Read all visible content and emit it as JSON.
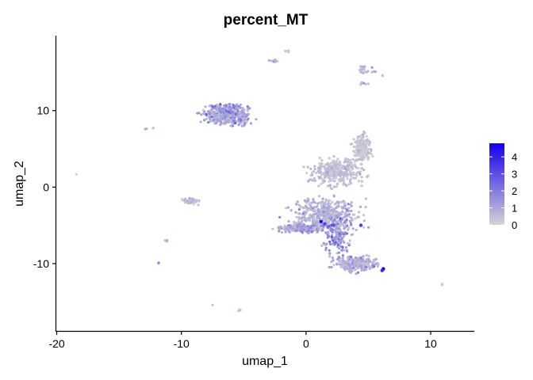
{
  "chart_data": {
    "type": "scatter",
    "title": "percent_MT",
    "xlabel": "umap_1",
    "ylabel": "umap_2",
    "xlim": [
      -20.1,
      13.5
    ],
    "ylim": [
      -18.8,
      19.8
    ],
    "x_ticks": [
      -20,
      -10,
      0,
      10
    ],
    "x_tick_labels": [
      "-20",
      "-10",
      "0",
      "10"
    ],
    "y_ticks": [
      10,
      0,
      -10
    ],
    "y_tick_labels": [
      "10",
      "0",
      "-10"
    ],
    "grid": false,
    "legend": {
      "placement": "right",
      "type": "colorbar",
      "ticks": [
        0,
        1,
        2,
        3,
        4
      ],
      "tick_labels": [
        "0",
        "1",
        "2",
        "3",
        "4"
      ],
      "range": [
        0,
        4.8
      ],
      "low_color": "#d3d3d3",
      "high_color": "#1400f0"
    },
    "clusters": [
      {
        "x": [
          -9.0,
          -3.8
        ],
        "y": [
          7.5,
          11.2
        ],
        "n": 380,
        "level": 0.9
      },
      {
        "x": [
          -8.5,
          -4.5
        ],
        "y": [
          9.5,
          11.0
        ],
        "n": 60,
        "level": 1.5
      },
      {
        "x": [
          -0.5,
          5.5
        ],
        "y": [
          -0.5,
          4.5
        ],
        "n": 320,
        "level": 0.4
      },
      {
        "x": [
          3.5,
          5.5
        ],
        "y": [
          2.5,
          7.5
        ],
        "n": 220,
        "level": 0.3
      },
      {
        "x": [
          -2.5,
          5.5
        ],
        "y": [
          -6.5,
          -0.5
        ],
        "n": 420,
        "level": 0.7
      },
      {
        "x": [
          -3.0,
          2.0
        ],
        "y": [
          -6.2,
          -4.5
        ],
        "n": 200,
        "level": 1.0
      },
      {
        "x": [
          1.0,
          4.0
        ],
        "y": [
          -9.5,
          -3.0
        ],
        "n": 160,
        "level": 1.2
      },
      {
        "x": [
          1.5,
          6.5
        ],
        "y": [
          -11.5,
          -8.5
        ],
        "n": 260,
        "level": 0.8
      },
      {
        "x": [
          -10.2,
          -8.2
        ],
        "y": [
          -2.5,
          -1.2
        ],
        "n": 40,
        "level": 0.5
      },
      {
        "x": [
          3.8,
          5.8
        ],
        "y": [
          14.5,
          16.0
        ],
        "n": 26,
        "level": 0.6
      },
      {
        "x": [
          3.8,
          5.2
        ],
        "y": [
          13.3,
          14.0
        ],
        "n": 8,
        "level": 0.8
      },
      {
        "x": [
          -3.2,
          -2.0
        ],
        "y": [
          16.2,
          16.8
        ],
        "n": 10,
        "level": 0.6
      },
      {
        "x": [
          -1.7,
          -1.3
        ],
        "y": [
          17.6,
          17.9
        ],
        "n": 4,
        "level": 0.4
      },
      {
        "x": [
          6.0,
          6.3
        ],
        "y": [
          14.5,
          14.7
        ],
        "n": 2,
        "level": 0.4
      },
      {
        "x": [
          -13.2,
          -12.6
        ],
        "y": [
          7.4,
          7.8
        ],
        "n": 3,
        "level": 0.5
      },
      {
        "x": [
          -12.4,
          -12.1
        ],
        "y": [
          7.6,
          7.8
        ],
        "n": 2,
        "level": 0.3
      },
      {
        "x": [
          -11.4,
          -11.0
        ],
        "y": [
          -7.2,
          -6.8
        ],
        "n": 3,
        "level": 0.7
      },
      {
        "x": [
          -12.0,
          -11.7
        ],
        "y": [
          -10.0,
          -9.7
        ],
        "n": 2,
        "level": 0.8
      },
      {
        "x": [
          -7.6,
          -7.4
        ],
        "y": [
          -15.6,
          -15.3
        ],
        "n": 2,
        "level": 0.3
      },
      {
        "x": [
          -5.5,
          -5.1
        ],
        "y": [
          -16.3,
          -15.9
        ],
        "n": 3,
        "level": 0.4
      },
      {
        "x": [
          10.8,
          11.1
        ],
        "y": [
          -12.8,
          -12.5
        ],
        "n": 3,
        "level": 0.5
      },
      {
        "x": [
          -18.5,
          -18.3
        ],
        "y": [
          1.6,
          1.8
        ],
        "n": 1,
        "level": 0.2
      }
    ],
    "highlights": [
      {
        "x": 1.2,
        "y": -4.5,
        "value": 4.6
      },
      {
        "x": 6.2,
        "y": -10.7,
        "value": 4.8
      },
      {
        "x": 6.1,
        "y": -10.9,
        "value": 3.8
      },
      {
        "x": 4.4,
        "y": -5.0,
        "value": 3.4
      },
      {
        "x": 1.5,
        "y": -4.8,
        "value": 3.2
      },
      {
        "x": 2.2,
        "y": -5.0,
        "value": 3.0
      }
    ]
  }
}
